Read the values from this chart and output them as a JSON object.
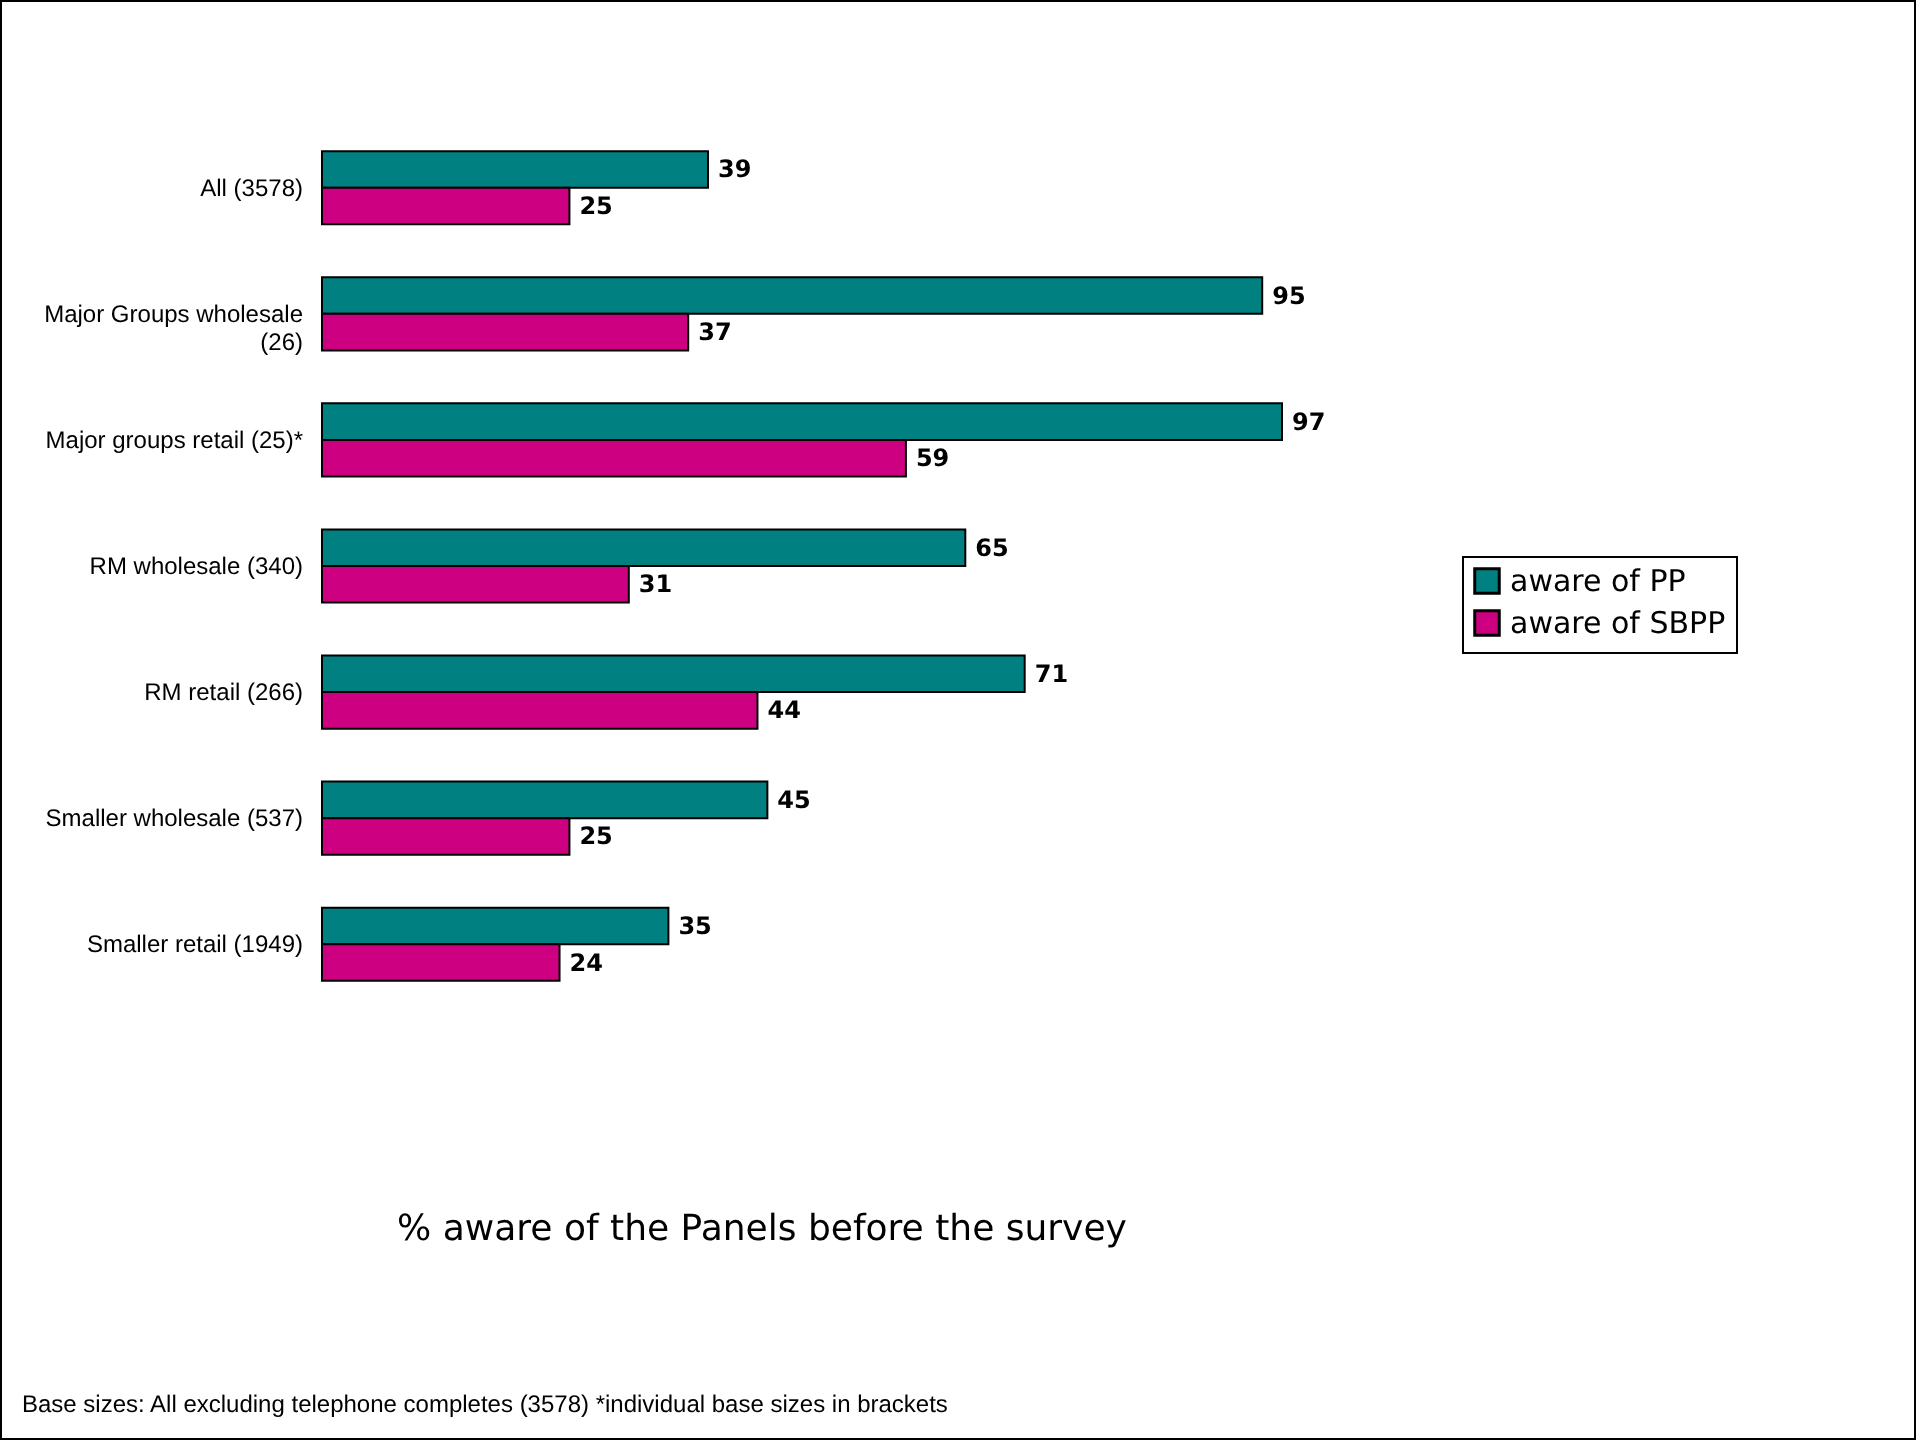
{
  "chart_data": {
    "type": "bar",
    "orientation": "horizontal",
    "categories": [
      "All (3578)",
      "Major Groups wholesale (26)",
      "Major groups retail (25)*",
      "RM wholesale (340)",
      "RM retail (266)",
      "Smaller wholesale (537)",
      "Smaller retail (1949)"
    ],
    "series": [
      {
        "name": "aware of PP",
        "color": "#008080",
        "values": [
          39,
          95,
          97,
          65,
          71,
          45,
          35
        ]
      },
      {
        "name": "aware of SBPP",
        "color": "#cc0080",
        "values": [
          25,
          37,
          59,
          31,
          44,
          25,
          24
        ]
      }
    ],
    "data_labels": true,
    "legend": "right",
    "grid": false,
    "annotations": [
      "% aware of the Panels before the survey",
      "Base sizes: All excluding telephone completes (3578) *individual base sizes in brackets"
    ]
  }
}
